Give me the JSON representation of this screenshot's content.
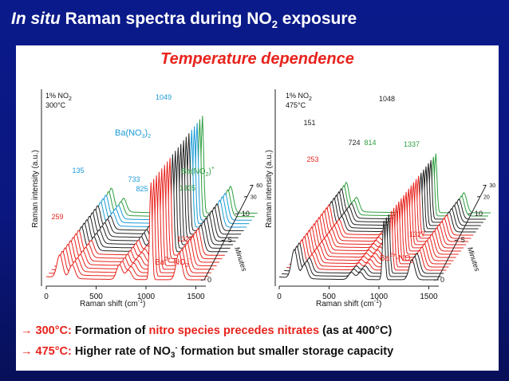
{
  "slide": {
    "title_italic": "In situ",
    "title_rest": " Raman spectra during NO",
    "title_sub": "2",
    "title_end": " exposure",
    "panel_title": "Temperature dependence"
  },
  "bullets": [
    {
      "arrow": "→",
      "temp": "300°C:",
      "text_a": " Formation of ",
      "highlight": "nitro species precedes nitrates",
      "text_b": " (as at 400°C)"
    },
    {
      "arrow": "→",
      "temp": "475°C:",
      "text_a": " Higher rate of NO",
      "sub": "3",
      "sup": "-",
      "text_b": " formation but smaller storage capacity"
    }
  ],
  "colors": {
    "nitrate": "#1a9ad6",
    "nitrite": "#2e9e3e",
    "nitro": "#e8231d",
    "baseline": "#222222"
  },
  "chart_data": [
    {
      "type": "line",
      "title": "1% NO2 300°C",
      "cond_line1": "1% NO",
      "cond_sub": "2",
      "cond_line2": "300°C",
      "xlabel": "Raman shift (cm-1)",
      "xlabel_text": "Raman shift (cm",
      "xlabel_sup": "-1",
      "xlabel_close": ")",
      "ylabel": "Raman intensity (a.u.)",
      "zlabel": "Minutes",
      "xlim": [
        0,
        1600
      ],
      "xticks": [
        "0",
        "500",
        "1000",
        "1500"
      ],
      "zticks": [
        "0",
        "5",
        "10",
        "30",
        "60"
      ],
      "n_spectra": 20,
      "peaks": [
        {
          "position": 135,
          "label": "135",
          "color": "nitrate",
          "height": 0.85
        },
        {
          "position": 259,
          "label": "259",
          "color": "nitro",
          "height": 0.5
        },
        {
          "position": 733,
          "label": "733",
          "color": "nitrate",
          "height": 0.55
        },
        {
          "position": 825,
          "label": "825",
          "color": "nitrate",
          "height": 0.35
        },
        {
          "position": 1049,
          "label": "1049",
          "color": "nitrate",
          "height": 3.6
        },
        {
          "position": 1327,
          "label": "1327",
          "color": "nitro",
          "height": 0.6
        },
        {
          "position": 1335,
          "label": "1335",
          "color": "nitrite",
          "height": 0.4
        }
      ],
      "species_labels": [
        {
          "text": "Ba(NO",
          "sub": "3",
          "tail": ")",
          "sub2": "2",
          "color": "nitrate"
        },
        {
          "text": "Ba(NO",
          "sub": "2",
          "tail": ")",
          "sup": "+",
          "color": "nitrite"
        },
        {
          "text": "Ba",
          "sup": "2+",
          "tail": "-NO",
          "sub": "2",
          "sup2": "-",
          "color": "nitro"
        }
      ],
      "band_colors": [
        "nitro",
        "nitro",
        "nitro",
        "nitro",
        "nitro",
        "nitro",
        "nitro",
        "nitro",
        "baseline",
        "baseline",
        "baseline",
        "baseline",
        "baseline",
        "baseline",
        "baseline",
        "nitrate",
        "nitrate",
        "nitrate",
        "nitrite",
        "nitrite"
      ]
    },
    {
      "type": "line",
      "title": "1% NO2 475°C",
      "cond_line1": "1% NO",
      "cond_sub": "2",
      "cond_line2": "475°C",
      "xlabel": "Raman shift (cm-1)",
      "xlabel_text": "Raman shift (cm",
      "xlabel_sup": "-1",
      "xlabel_close": ")",
      "ylabel": "Raman intensity (a.u.)",
      "zlabel": "Minutes",
      "xlim": [
        0,
        1600
      ],
      "xticks": [
        "0",
        "500",
        "1000",
        "1500"
      ],
      "zticks": [
        "0",
        "5",
        "10",
        "20",
        "30"
      ],
      "n_spectra": 22,
      "peaks": [
        {
          "position": 151,
          "label": "151",
          "color": "baseline",
          "height": 1.2
        },
        {
          "position": 253,
          "label": "253",
          "color": "nitro",
          "height": 0.6
        },
        {
          "position": 724,
          "label": "724",
          "color": "baseline",
          "height": 0.3
        },
        {
          "position": 814,
          "label": "814",
          "color": "nitrite",
          "height": 0.3
        },
        {
          "position": 1048,
          "label": "1048",
          "color": "baseline",
          "height": 2.5
        },
        {
          "position": 1327,
          "label": "1327",
          "color": "nitro",
          "height": 0.55
        },
        {
          "position": 1337,
          "label": "1337",
          "color": "nitrite",
          "height": 0.3
        }
      ],
      "species_labels": [
        {
          "text": "Ba",
          "sup": "2+",
          "tail": "-NO",
          "sub": "2",
          "sup2": "-",
          "color": "nitro"
        }
      ],
      "band_colors": [
        "baseline",
        "baseline",
        "baseline",
        "nitro",
        "nitro",
        "nitro",
        "nitro",
        "nitro",
        "nitro",
        "nitro",
        "nitro",
        "nitro",
        "nitro",
        "nitro",
        "nitro",
        "baseline",
        "baseline",
        "baseline",
        "baseline",
        "baseline",
        "nitrite",
        "nitrite"
      ]
    }
  ]
}
